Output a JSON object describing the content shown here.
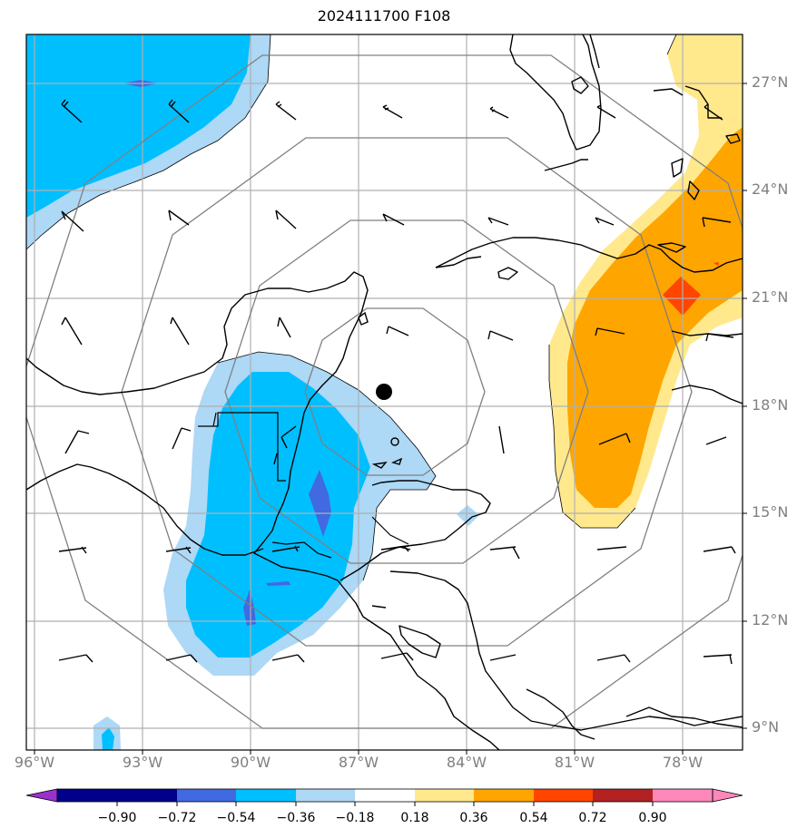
{
  "title": "2024111700 F108",
  "lat_labels": [
    "27°N",
    "24°N",
    "21°N",
    "18°N",
    "15°N",
    "12°N",
    "9°N"
  ],
  "lon_labels": [
    "96°W",
    "93°W",
    "90°W",
    "87°W",
    "84°W",
    "81°W",
    "78°W"
  ],
  "colorbar": {
    "ticks": [
      "−0.90",
      "−0.72",
      "−0.54",
      "−0.36",
      "−0.18",
      "0.18",
      "0.36",
      "0.54",
      "0.72",
      "0.90"
    ],
    "colors": [
      "#9932cc",
      "#00008b",
      "#4169e1",
      "#00bfff",
      "#add8f6",
      "#ffffff",
      "#ffe98c",
      "#ffa500",
      "#ff4500",
      "#b22222",
      "#ff88bb"
    ]
  },
  "map": {
    "storm_center": {
      "lat": 18.4,
      "lon": -86.3
    },
    "lat_range": [
      8.4,
      28.3
    ],
    "lon_range": [
      -96.0,
      -76.4
    ],
    "range_rings": 4,
    "field_colors": {
      "light_blue": "#add8f6",
      "blue": "#00bfff",
      "royal_blue": "#4169e1",
      "light_yellow": "#ffe98c",
      "orange": "#ffa500",
      "red": "#ff4500"
    }
  }
}
